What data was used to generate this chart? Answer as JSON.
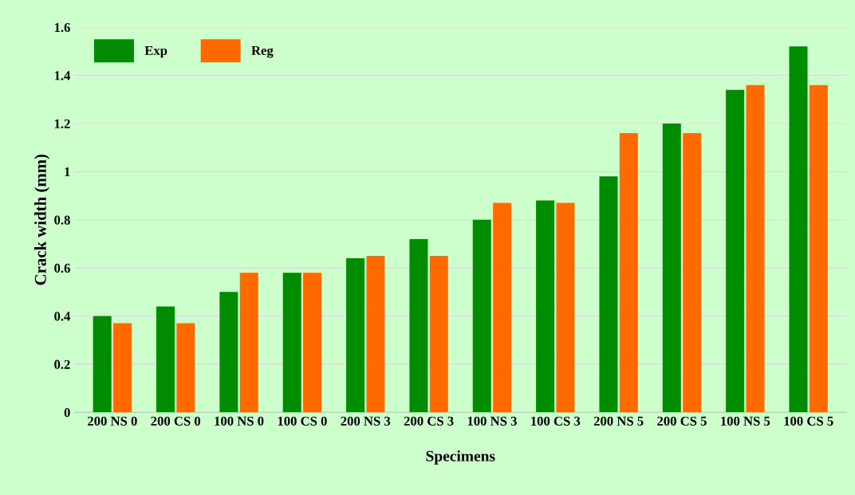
{
  "chart_data": {
    "type": "bar",
    "xlabel": "Specimens",
    "ylabel": "Crack width (mm)",
    "categories": [
      "200 NS 0",
      "200 CS 0",
      "100 NS 0",
      "100 CS 0",
      "200 NS 3",
      "200 CS 3",
      "100 NS 3",
      "100 CS 3",
      "200 NS 5",
      "200 CS 5",
      "100 NS 5",
      "100 CS 5"
    ],
    "series": [
      {
        "name": "Exp",
        "color": "#008c00",
        "values": [
          0.4,
          0.44,
          0.5,
          0.58,
          0.64,
          0.72,
          0.8,
          0.88,
          0.98,
          1.2,
          1.34,
          1.52
        ]
      },
      {
        "name": "Reg",
        "color": "#ff6a00",
        "values": [
          0.37,
          0.37,
          0.58,
          0.58,
          0.65,
          0.65,
          0.87,
          0.87,
          1.16,
          1.16,
          1.36,
          1.36
        ]
      }
    ],
    "ylim": [
      0,
      1.6
    ],
    "yticks": [
      0,
      0.2,
      0.4,
      0.6,
      0.8,
      {
        "value": 1.0,
        "label": "1"
      },
      1.2,
      1.4,
      1.6
    ],
    "grid": "y",
    "legend": "top left"
  }
}
